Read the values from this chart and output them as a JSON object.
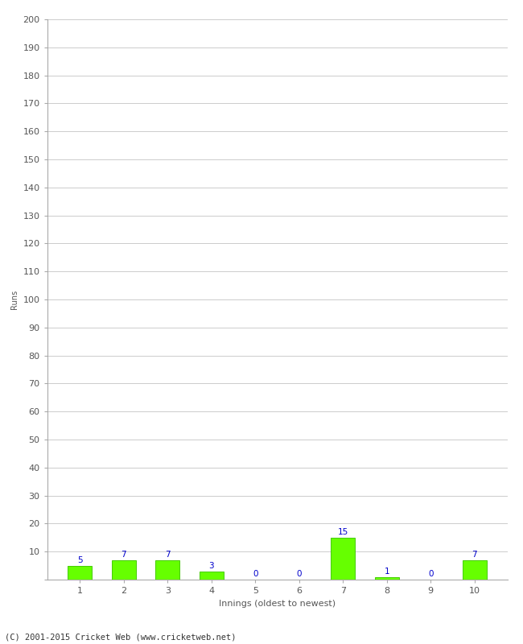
{
  "innings": [
    1,
    2,
    3,
    4,
    5,
    6,
    7,
    8,
    9,
    10
  ],
  "runs": [
    5,
    7,
    7,
    3,
    0,
    0,
    15,
    1,
    0,
    7
  ],
  "bar_color": "#66ff00",
  "bar_edge_color": "#44cc00",
  "label_color": "#0000cc",
  "ylabel": "Runs",
  "xlabel": "Innings (oldest to newest)",
  "ylim": [
    0,
    200
  ],
  "yticks": [
    0,
    10,
    20,
    30,
    40,
    50,
    60,
    70,
    80,
    90,
    100,
    110,
    120,
    130,
    140,
    150,
    160,
    170,
    180,
    190,
    200
  ],
  "footer": "(C) 2001-2015 Cricket Web (www.cricketweb.net)",
  "background_color": "#ffffff",
  "grid_color": "#cccccc",
  "label_fontsize": 7.5,
  "axis_fontsize": 8,
  "ylabel_fontsize": 7,
  "xlabel_fontsize": 8,
  "footer_fontsize": 7.5,
  "tick_color": "#555555",
  "spine_color": "#aaaaaa"
}
